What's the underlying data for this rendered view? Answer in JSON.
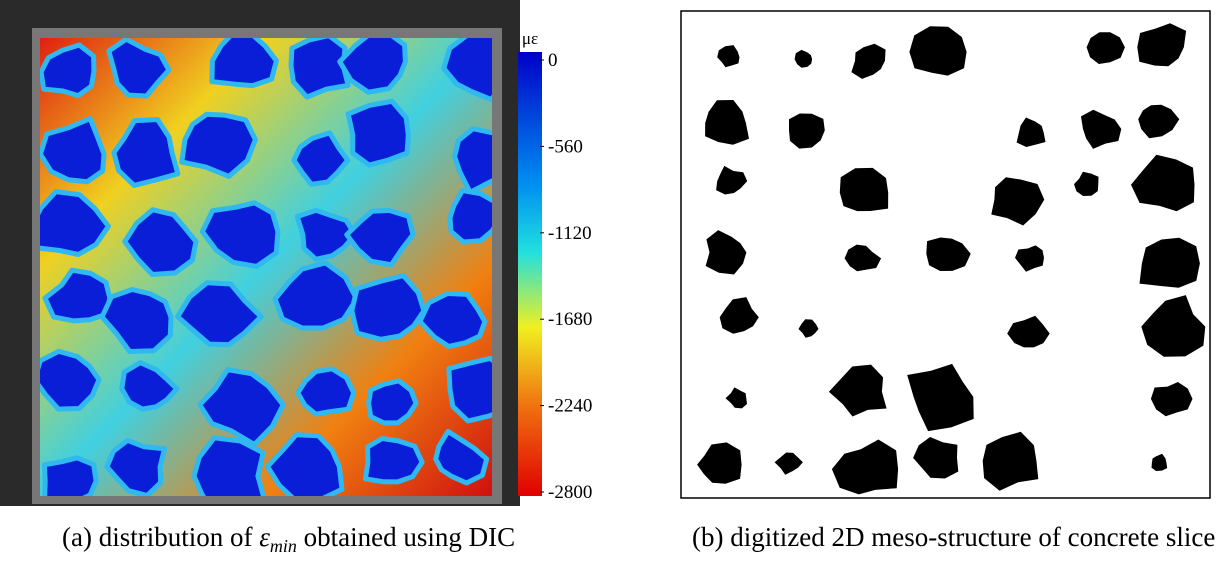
{
  "colorbar": {
    "unit": "με",
    "lim": [
      0,
      -2800
    ],
    "ticks": [
      0,
      -560,
      -1120,
      -1680,
      -2240,
      -2800
    ]
  },
  "captions": {
    "left": {
      "prefix": "(a) distribution of",
      "symbol": "ε",
      "subscript": "min",
      "suffix": "obtained using DIC"
    },
    "right": "(b) digitized 2D meso-structure of concrete slice"
  }
}
